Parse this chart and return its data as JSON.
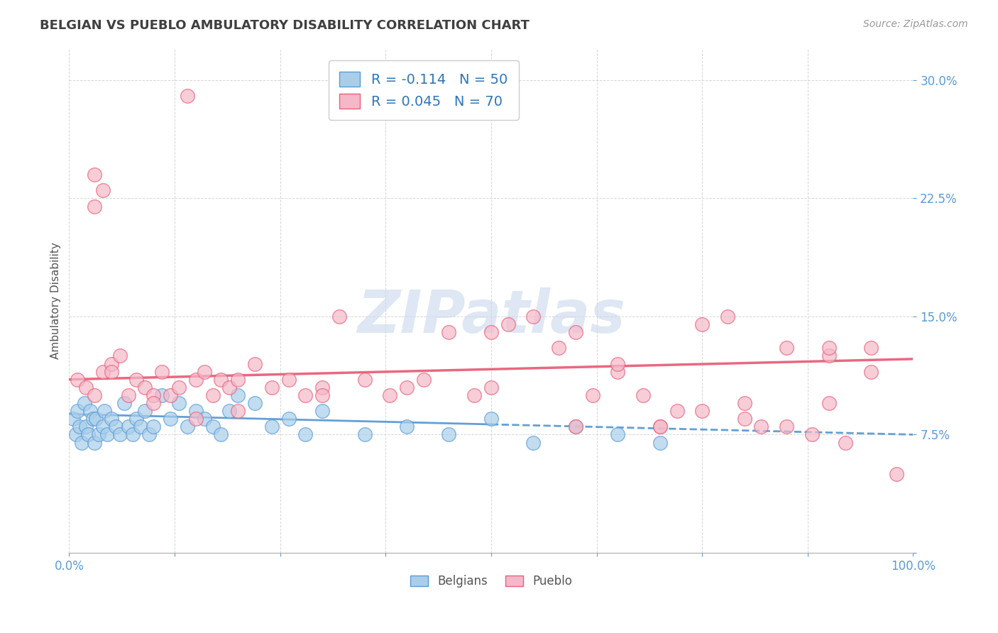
{
  "title": "BELGIAN VS PUEBLO AMBULATORY DISABILITY CORRELATION CHART",
  "source": "Source: ZipAtlas.com",
  "ylabel": "Ambulatory Disability",
  "xlim": [
    0,
    100
  ],
  "ylim": [
    0,
    32
  ],
  "yticks": [
    0,
    7.5,
    15.0,
    22.5,
    30.0
  ],
  "belgian_R": -0.114,
  "belgian_N": 50,
  "pueblo_R": 0.045,
  "pueblo_N": 70,
  "belgian_color": "#A8CEEA",
  "pueblo_color": "#F5B8C8",
  "belgian_edge_color": "#5B9BD5",
  "pueblo_edge_color": "#E8607A",
  "belgian_line_color": "#5B9BD5",
  "pueblo_line_color": "#E8607A",
  "background_color": "#FFFFFF",
  "plot_bg_color": "#FFFFFF",
  "grid_color": "#CCCCCC",
  "title_color": "#404040",
  "axis_label_color": "#555555",
  "tick_color": "#5B9BD5",
  "r_value_color": "#2E75B6",
  "watermark_color": "#C8D8EC",
  "belgians_x": [
    0.5,
    0.8,
    1.0,
    1.2,
    1.5,
    1.8,
    2.0,
    2.2,
    2.5,
    2.8,
    3.0,
    3.2,
    3.5,
    4.0,
    4.2,
    4.5,
    5.0,
    5.5,
    6.0,
    6.5,
    7.0,
    7.5,
    8.0,
    8.5,
    9.0,
    9.5,
    10.0,
    11.0,
    12.0,
    13.0,
    14.0,
    15.0,
    16.0,
    17.0,
    18.0,
    19.0,
    20.0,
    22.0,
    24.0,
    26.0,
    28.0,
    30.0,
    35.0,
    40.0,
    45.0,
    50.0,
    55.0,
    60.0,
    65.0,
    70.0
  ],
  "belgians_y": [
    8.5,
    7.5,
    9.0,
    8.0,
    7.0,
    9.5,
    8.0,
    7.5,
    9.0,
    8.5,
    7.0,
    8.5,
    7.5,
    8.0,
    9.0,
    7.5,
    8.5,
    8.0,
    7.5,
    9.5,
    8.0,
    7.5,
    8.5,
    8.0,
    9.0,
    7.5,
    8.0,
    10.0,
    8.5,
    9.5,
    8.0,
    9.0,
    8.5,
    8.0,
    7.5,
    9.0,
    10.0,
    9.5,
    8.0,
    8.5,
    7.5,
    9.0,
    7.5,
    8.0,
    7.5,
    8.5,
    7.0,
    8.0,
    7.5,
    7.0
  ],
  "pueblo_x": [
    1.0,
    2.0,
    3.0,
    4.0,
    5.0,
    6.0,
    7.0,
    8.0,
    9.0,
    10.0,
    11.0,
    12.0,
    13.0,
    14.0,
    15.0,
    16.0,
    17.0,
    18.0,
    19.0,
    20.0,
    22.0,
    24.0,
    26.0,
    28.0,
    30.0,
    32.0,
    35.0,
    38.0,
    40.0,
    42.0,
    45.0,
    48.0,
    50.0,
    52.0,
    55.0,
    58.0,
    60.0,
    62.0,
    65.0,
    68.0,
    70.0,
    72.0,
    75.0,
    78.0,
    80.0,
    82.0,
    85.0,
    88.0,
    90.0,
    92.0,
    95.0,
    98.0,
    15.0,
    3.0,
    4.0,
    5.0,
    60.0,
    65.0,
    70.0,
    75.0,
    80.0,
    85.0,
    90.0,
    95.0,
    3.0,
    10.0,
    20.0,
    30.0,
    50.0,
    90.0
  ],
  "pueblo_y": [
    11.0,
    10.5,
    10.0,
    11.5,
    12.0,
    12.5,
    10.0,
    11.0,
    10.5,
    10.0,
    11.5,
    10.0,
    10.5,
    29.0,
    11.0,
    11.5,
    10.0,
    11.0,
    10.5,
    11.0,
    12.0,
    10.5,
    11.0,
    10.0,
    10.5,
    15.0,
    11.0,
    10.0,
    10.5,
    11.0,
    14.0,
    10.0,
    10.5,
    14.5,
    15.0,
    13.0,
    14.0,
    10.0,
    11.5,
    10.0,
    8.0,
    9.0,
    14.5,
    15.0,
    8.5,
    8.0,
    8.0,
    7.5,
    9.5,
    7.0,
    11.5,
    5.0,
    8.5,
    24.0,
    23.0,
    11.5,
    8.0,
    12.0,
    8.0,
    9.0,
    9.5,
    13.0,
    12.5,
    13.0,
    22.0,
    9.5,
    9.0,
    10.0,
    14.0,
    13.0
  ],
  "bel_trend_x0": 0,
  "bel_trend_x1": 100,
  "bel_trend_y0": 8.8,
  "bel_trend_y1": 7.5,
  "pue_trend_x0": 0,
  "pue_trend_x1": 100,
  "pue_trend_y0": 11.0,
  "pue_trend_y1": 12.3
}
